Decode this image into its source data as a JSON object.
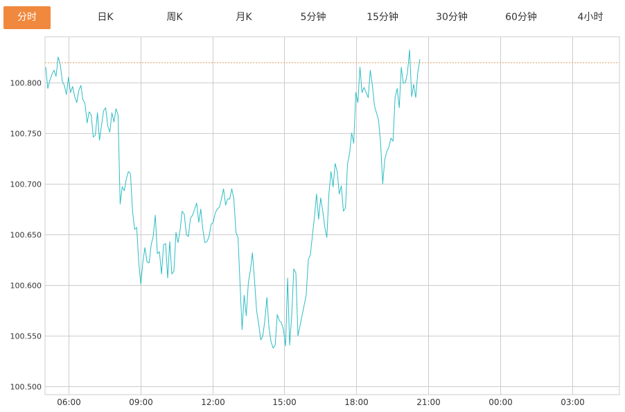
{
  "tabs": [
    {
      "label": "分时",
      "active": true
    },
    {
      "label": "日K"
    },
    {
      "label": "周K"
    },
    {
      "label": "月K"
    },
    {
      "label": "5分钟"
    },
    {
      "label": "15分钟"
    },
    {
      "label": "30分钟"
    },
    {
      "label": "60分钟"
    },
    {
      "label": "4小时"
    }
  ],
  "colors": {
    "accent": "#f0893d",
    "line": "#2bbcc4",
    "grid": "#cccccc",
    "ref_line": "#e0a060"
  },
  "chart_data": {
    "type": "line",
    "y_ticks": [
      "100.800",
      "100.750",
      "100.700",
      "100.650",
      "100.600",
      "100.550",
      "100.500"
    ],
    "x_ticks": [
      "06:00",
      "09:00",
      "12:00",
      "15:00",
      "18:00",
      "21:00",
      "00:00",
      "03:00"
    ],
    "ylim": [
      100.492,
      100.845
    ],
    "reference_value": 100.82,
    "grid": true,
    "series": [
      {
        "values": [
          100.815,
          100.794,
          100.802,
          100.808,
          100.812,
          100.806,
          100.825,
          100.818,
          100.801,
          100.797,
          100.788,
          100.805,
          100.79,
          100.796,
          100.786,
          100.78,
          100.792,
          100.797,
          100.783,
          100.779,
          100.76,
          100.771,
          100.768,
          100.746,
          100.748,
          100.77,
          100.743,
          100.758,
          100.772,
          100.775,
          100.757,
          100.751,
          100.77,
          100.761,
          100.774,
          100.768,
          100.68,
          100.697,
          100.693,
          100.705,
          100.712,
          100.71,
          100.673,
          100.655,
          100.657,
          100.622,
          100.601,
          100.623,
          100.637,
          100.623,
          100.622,
          100.64,
          100.648,
          100.669,
          100.631,
          100.633,
          100.611,
          100.64,
          100.641,
          100.607,
          100.643,
          100.611,
          100.614,
          100.652,
          100.642,
          100.654,
          100.673,
          100.67,
          100.65,
          100.648,
          100.666,
          100.669,
          100.675,
          100.681,
          100.662,
          100.675,
          100.655,
          100.642,
          100.643,
          100.648,
          100.66,
          100.662,
          100.671,
          100.675,
          100.677,
          100.685,
          100.695,
          100.679,
          100.685,
          100.685,
          100.695,
          100.685,
          100.652,
          100.647,
          100.602,
          100.556,
          100.59,
          100.57,
          100.602,
          100.615,
          100.632,
          100.605,
          100.575,
          100.562,
          100.546,
          100.55,
          100.565,
          100.588,
          100.558,
          100.544,
          100.538,
          100.541,
          100.571,
          100.565,
          100.563,
          100.556,
          100.54,
          100.607,
          100.541,
          100.57,
          100.616,
          100.612,
          100.55,
          100.56,
          100.57,
          100.58,
          100.59,
          100.625,
          100.63,
          100.649,
          100.667,
          100.69,
          100.665,
          100.686,
          100.673,
          100.657,
          100.647,
          100.69,
          100.712,
          100.697,
          100.72,
          100.712,
          100.69,
          100.698,
          100.673,
          100.676,
          100.72,
          100.73,
          100.75,
          100.74,
          100.79,
          100.78,
          100.815,
          100.79,
          100.795,
          100.79,
          100.785,
          100.812,
          100.797,
          100.777,
          100.77,
          100.763,
          100.74,
          100.7,
          100.724,
          100.732,
          100.736,
          100.745,
          100.742,
          100.785,
          100.794,
          100.775,
          100.815,
          100.799,
          100.8,
          100.81,
          100.832,
          100.786,
          100.798,
          100.785,
          100.81,
          100.823
        ]
      }
    ]
  }
}
